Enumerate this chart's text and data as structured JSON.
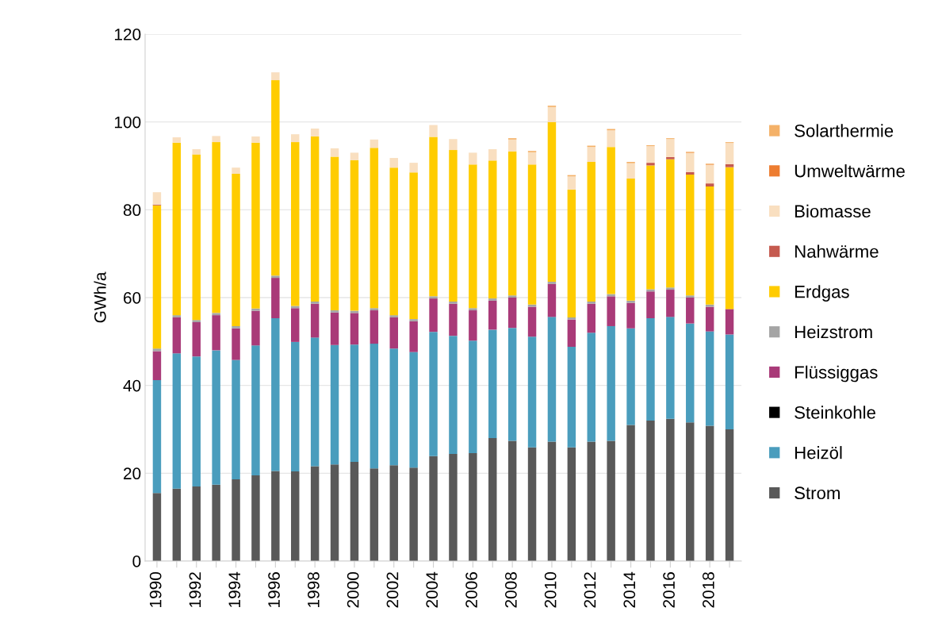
{
  "chart_data": {
    "type": "bar",
    "stacked": true,
    "ylabel": "GWh/a",
    "ylim": [
      0,
      120
    ],
    "yticks": [
      0,
      20,
      40,
      60,
      80,
      100,
      120
    ],
    "grid": "y",
    "legend": "right",
    "categories": [
      "1990",
      null,
      "1992",
      null,
      "1994",
      null,
      "1996",
      null,
      "1998",
      null,
      "2000",
      null,
      "2002",
      null,
      "2004",
      null,
      "2006",
      null,
      "2008",
      null,
      "2010",
      null,
      "2012",
      null,
      "2014",
      null,
      "2016",
      null,
      "2018",
      null
    ],
    "series": [
      {
        "name": "Strom",
        "color": "#595959",
        "values": [
          15.5,
          16.5,
          17.0,
          17.4,
          18.6,
          19.5,
          20.5,
          20.4,
          21.6,
          22.0,
          22.6,
          21.1,
          21.8,
          21.3,
          23.9,
          24.4,
          24.6,
          28.0,
          27.4,
          25.9,
          27.2,
          25.9,
          27.2,
          27.4,
          31.0,
          32.0,
          32.4,
          31.6,
          30.8,
          30.0
        ]
      },
      {
        "name": "Heizöl",
        "color": "#4a9dbd",
        "values": [
          25.7,
          30.8,
          29.6,
          30.6,
          27.2,
          29.6,
          34.8,
          29.5,
          29.3,
          27.2,
          26.7,
          28.4,
          26.6,
          26.3,
          28.3,
          26.9,
          25.6,
          24.7,
          25.7,
          25.2,
          28.4,
          22.9,
          24.8,
          26.1,
          22.0,
          23.3,
          23.2,
          22.5,
          21.5,
          21.6
        ]
      },
      {
        "name": "Steinkohle",
        "color": "#000000",
        "values": [
          0,
          0,
          0,
          0,
          0,
          0,
          0,
          0,
          0,
          0,
          0,
          0,
          0,
          0,
          0,
          0,
          0,
          0,
          0,
          0,
          0,
          0,
          0,
          0,
          0,
          0,
          0,
          0,
          0,
          0
        ]
      },
      {
        "name": "Flüssiggas",
        "color": "#a93a78",
        "values": [
          6.6,
          8.2,
          7.8,
          8.0,
          7.2,
          7.9,
          9.2,
          7.7,
          7.7,
          7.4,
          7.2,
          7.6,
          7.1,
          7.0,
          7.6,
          7.3,
          6.9,
          6.6,
          6.9,
          6.8,
          7.5,
          6.2,
          6.6,
          6.8,
          5.8,
          6.1,
          6.2,
          5.9,
          5.6,
          5.8
        ]
      },
      {
        "name": "Heizstrom",
        "color": "#a5a5a5",
        "values": [
          0.6,
          0.5,
          0.5,
          0.5,
          0.5,
          0.5,
          0.5,
          0.5,
          0.5,
          0.5,
          0.5,
          0.5,
          0.5,
          0.5,
          0.5,
          0.5,
          0.5,
          0.5,
          0.5,
          0.5,
          0.5,
          0.5,
          0.5,
          0.5,
          0.5,
          0.5,
          0.5,
          0.5,
          0.5,
          null
        ]
      },
      {
        "name": "Erdgas",
        "color": "#ffcc00",
        "values": [
          32.6,
          39.3,
          37.7,
          38.9,
          34.7,
          37.8,
          44.5,
          37.3,
          37.6,
          35.0,
          34.3,
          36.5,
          33.6,
          33.4,
          36.3,
          34.5,
          32.7,
          31.4,
          32.8,
          31.9,
          36.4,
          29.1,
          31.8,
          33.5,
          27.8,
          28.2,
          29.2,
          27.5,
          26.9,
          32.3
        ]
      },
      {
        "name": "Nahwärme",
        "color": "#c55a4f",
        "values": [
          0.2,
          0,
          0,
          0,
          0,
          0,
          0,
          0,
          0,
          0,
          0,
          0,
          0,
          0,
          0,
          0,
          0,
          0,
          0,
          0,
          0,
          0,
          0,
          0,
          0,
          0.6,
          0.5,
          0.6,
          0.7,
          0.7
        ]
      },
      {
        "name": "Biomasse",
        "color": "#f9dfc0",
        "values": [
          2.8,
          1.2,
          1.2,
          1.4,
          1.4,
          1.4,
          1.8,
          1.8,
          1.8,
          1.9,
          1.7,
          1.9,
          2.2,
          2.2,
          2.7,
          2.5,
          2.7,
          2.6,
          2.7,
          2.8,
          3.4,
          3.0,
          3.4,
          3.8,
          3.5,
          3.8,
          4.1,
          4.3,
          4.2,
          4.8
        ]
      },
      {
        "name": "Umweltwärme",
        "color": "#ed7d31",
        "values": [
          0,
          0,
          0,
          0,
          0,
          0,
          0,
          0,
          0,
          0,
          0,
          0,
          0,
          0,
          0,
          0,
          0,
          0,
          0,
          0,
          0,
          0,
          0,
          0,
          0,
          null,
          null,
          0.1,
          0.1,
          null
        ]
      },
      {
        "name": "Solarthermie",
        "color": "#f4b168",
        "values": [
          0,
          0,
          0,
          0,
          0,
          0,
          0,
          0,
          0,
          0,
          0,
          0,
          0,
          0,
          0,
          0,
          0,
          0,
          0.3,
          0.3,
          0.3,
          0.3,
          0.3,
          0.3,
          0.3,
          0.2,
          0.2,
          0.2,
          0.2,
          0.2
        ]
      }
    ]
  }
}
